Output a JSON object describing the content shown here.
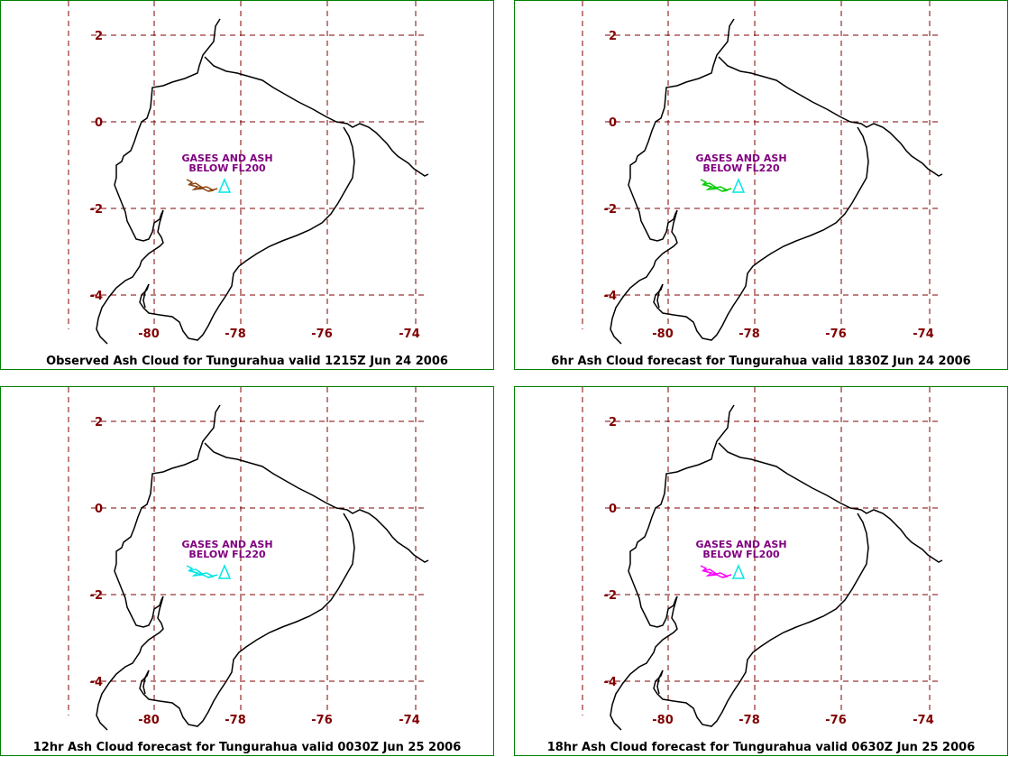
{
  "panels": [
    {
      "caption": "Observed Ash Cloud for Tungurahua valid 1215Z Jun 24 2006",
      "annotation": [
        "GASES AND ASH",
        "BELOW FL200"
      ],
      "ash_color": "#8B4513"
    },
    {
      "caption": "6hr Ash Cloud forecast for Tungurahua valid 1830Z Jun 24 2006",
      "annotation": [
        "GASES AND ASH",
        "BELOW FL220"
      ],
      "ash_color": "#00CC00"
    },
    {
      "caption": "12hr Ash Cloud forecast for Tungurahua valid 0030Z Jun 25 2006",
      "annotation": [
        "GASES AND ASH",
        "BELOW FL220"
      ],
      "ash_color": "#00E5E5"
    },
    {
      "caption": "18hr Ash Cloud forecast for Tungurahua valid 0630Z Jun 25 2006",
      "annotation": [
        "GASES AND ASH",
        "BELOW FL200"
      ],
      "ash_color": "#FF00FF"
    }
  ],
  "lat_ticks": [
    "2",
    "0",
    "-2",
    "-4"
  ],
  "lon_ticks": [
    "-80",
    "-78",
    "-76",
    "-74"
  ],
  "colors": {
    "grid": "#800000",
    "coast": "#000000",
    "panel_border": "#008000",
    "annotation": "#800080",
    "volcano": "#00E5E5"
  }
}
